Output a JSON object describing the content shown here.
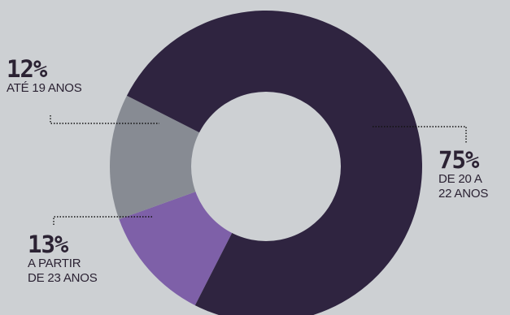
{
  "chart_data": {
    "type": "pie",
    "slices": [
      {
        "label": "ATÉ 19 ANOS",
        "value": 12,
        "value_text": "12%",
        "color": "#7e60a8"
      },
      {
        "label": "A PARTIR\nDE 23 ANOS",
        "value": 13,
        "value_text": "13%",
        "color": "#878b93"
      },
      {
        "label": "DE 20 A\n22 ANOS",
        "value": 75,
        "value_text": "75%",
        "color": "#2f2440"
      }
    ],
    "hole_color": "#cdd0d3",
    "background": "#cdd0d3"
  }
}
